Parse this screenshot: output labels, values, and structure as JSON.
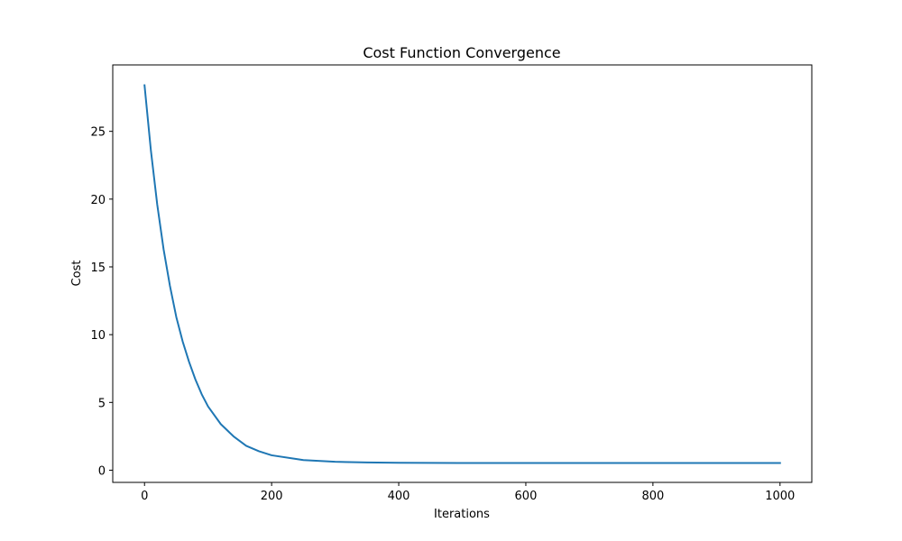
{
  "chart_data": {
    "type": "line",
    "title": "Cost Function Convergence",
    "xlabel": "Iterations",
    "ylabel": "Cost",
    "xlim": [
      -50,
      1050
    ],
    "ylim": [
      -0.9,
      29.9
    ],
    "xticks": [
      0,
      200,
      400,
      600,
      800,
      1000
    ],
    "yticks": [
      0,
      5,
      10,
      15,
      20,
      25
    ],
    "grid": false,
    "legend": "none",
    "series": [
      {
        "color": "#1f77b4",
        "x": [
          0,
          10,
          20,
          30,
          40,
          50,
          60,
          70,
          80,
          90,
          100,
          120,
          140,
          160,
          180,
          200,
          250,
          300,
          350,
          400,
          500,
          600,
          700,
          800,
          900,
          1000
        ],
        "y": [
          28.4,
          23.6,
          19.6,
          16.3,
          13.6,
          11.3,
          9.5,
          8.0,
          6.7,
          5.6,
          4.7,
          3.4,
          2.5,
          1.8,
          1.4,
          1.1,
          0.75,
          0.62,
          0.57,
          0.55,
          0.53,
          0.53,
          0.53,
          0.53,
          0.53,
          0.53
        ]
      }
    ]
  }
}
